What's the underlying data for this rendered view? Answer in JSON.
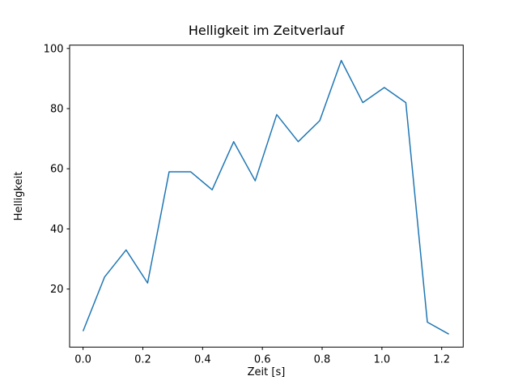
{
  "window": {
    "background_color": "#ffffff"
  },
  "chart_data": {
    "type": "line",
    "title": "Helligkeit im Zeitverlauf",
    "xlabel": "Zeit [s]",
    "ylabel": "Helligkeit",
    "x": [
      0.0,
      0.072,
      0.144,
      0.216,
      0.288,
      0.36,
      0.432,
      0.504,
      0.576,
      0.648,
      0.72,
      0.792,
      0.864,
      0.936,
      1.008,
      1.08,
      1.152,
      1.224
    ],
    "y": [
      6,
      24,
      33,
      22,
      59,
      59,
      53,
      69,
      56,
      78,
      69,
      76,
      96,
      82,
      87,
      82,
      9,
      5
    ],
    "series_name": "Helligkeit",
    "x_ticks": [
      0.0,
      0.2,
      0.4,
      0.6,
      0.8,
      1.0,
      1.2
    ],
    "x_tick_labels": [
      "0.0",
      "0.2",
      "0.4",
      "0.6",
      "0.8",
      "1.0",
      "1.2"
    ],
    "y_ticks": [
      20,
      40,
      60,
      80,
      100
    ],
    "y_tick_labels": [
      "20",
      "40",
      "60",
      "80",
      "100"
    ],
    "xlim": [
      -0.045,
      1.272
    ],
    "ylim": [
      0.7,
      101.1
    ],
    "grid": false,
    "legend": null,
    "line_color": "#1f77b4",
    "axis_color": "#000000",
    "marker": "none"
  }
}
